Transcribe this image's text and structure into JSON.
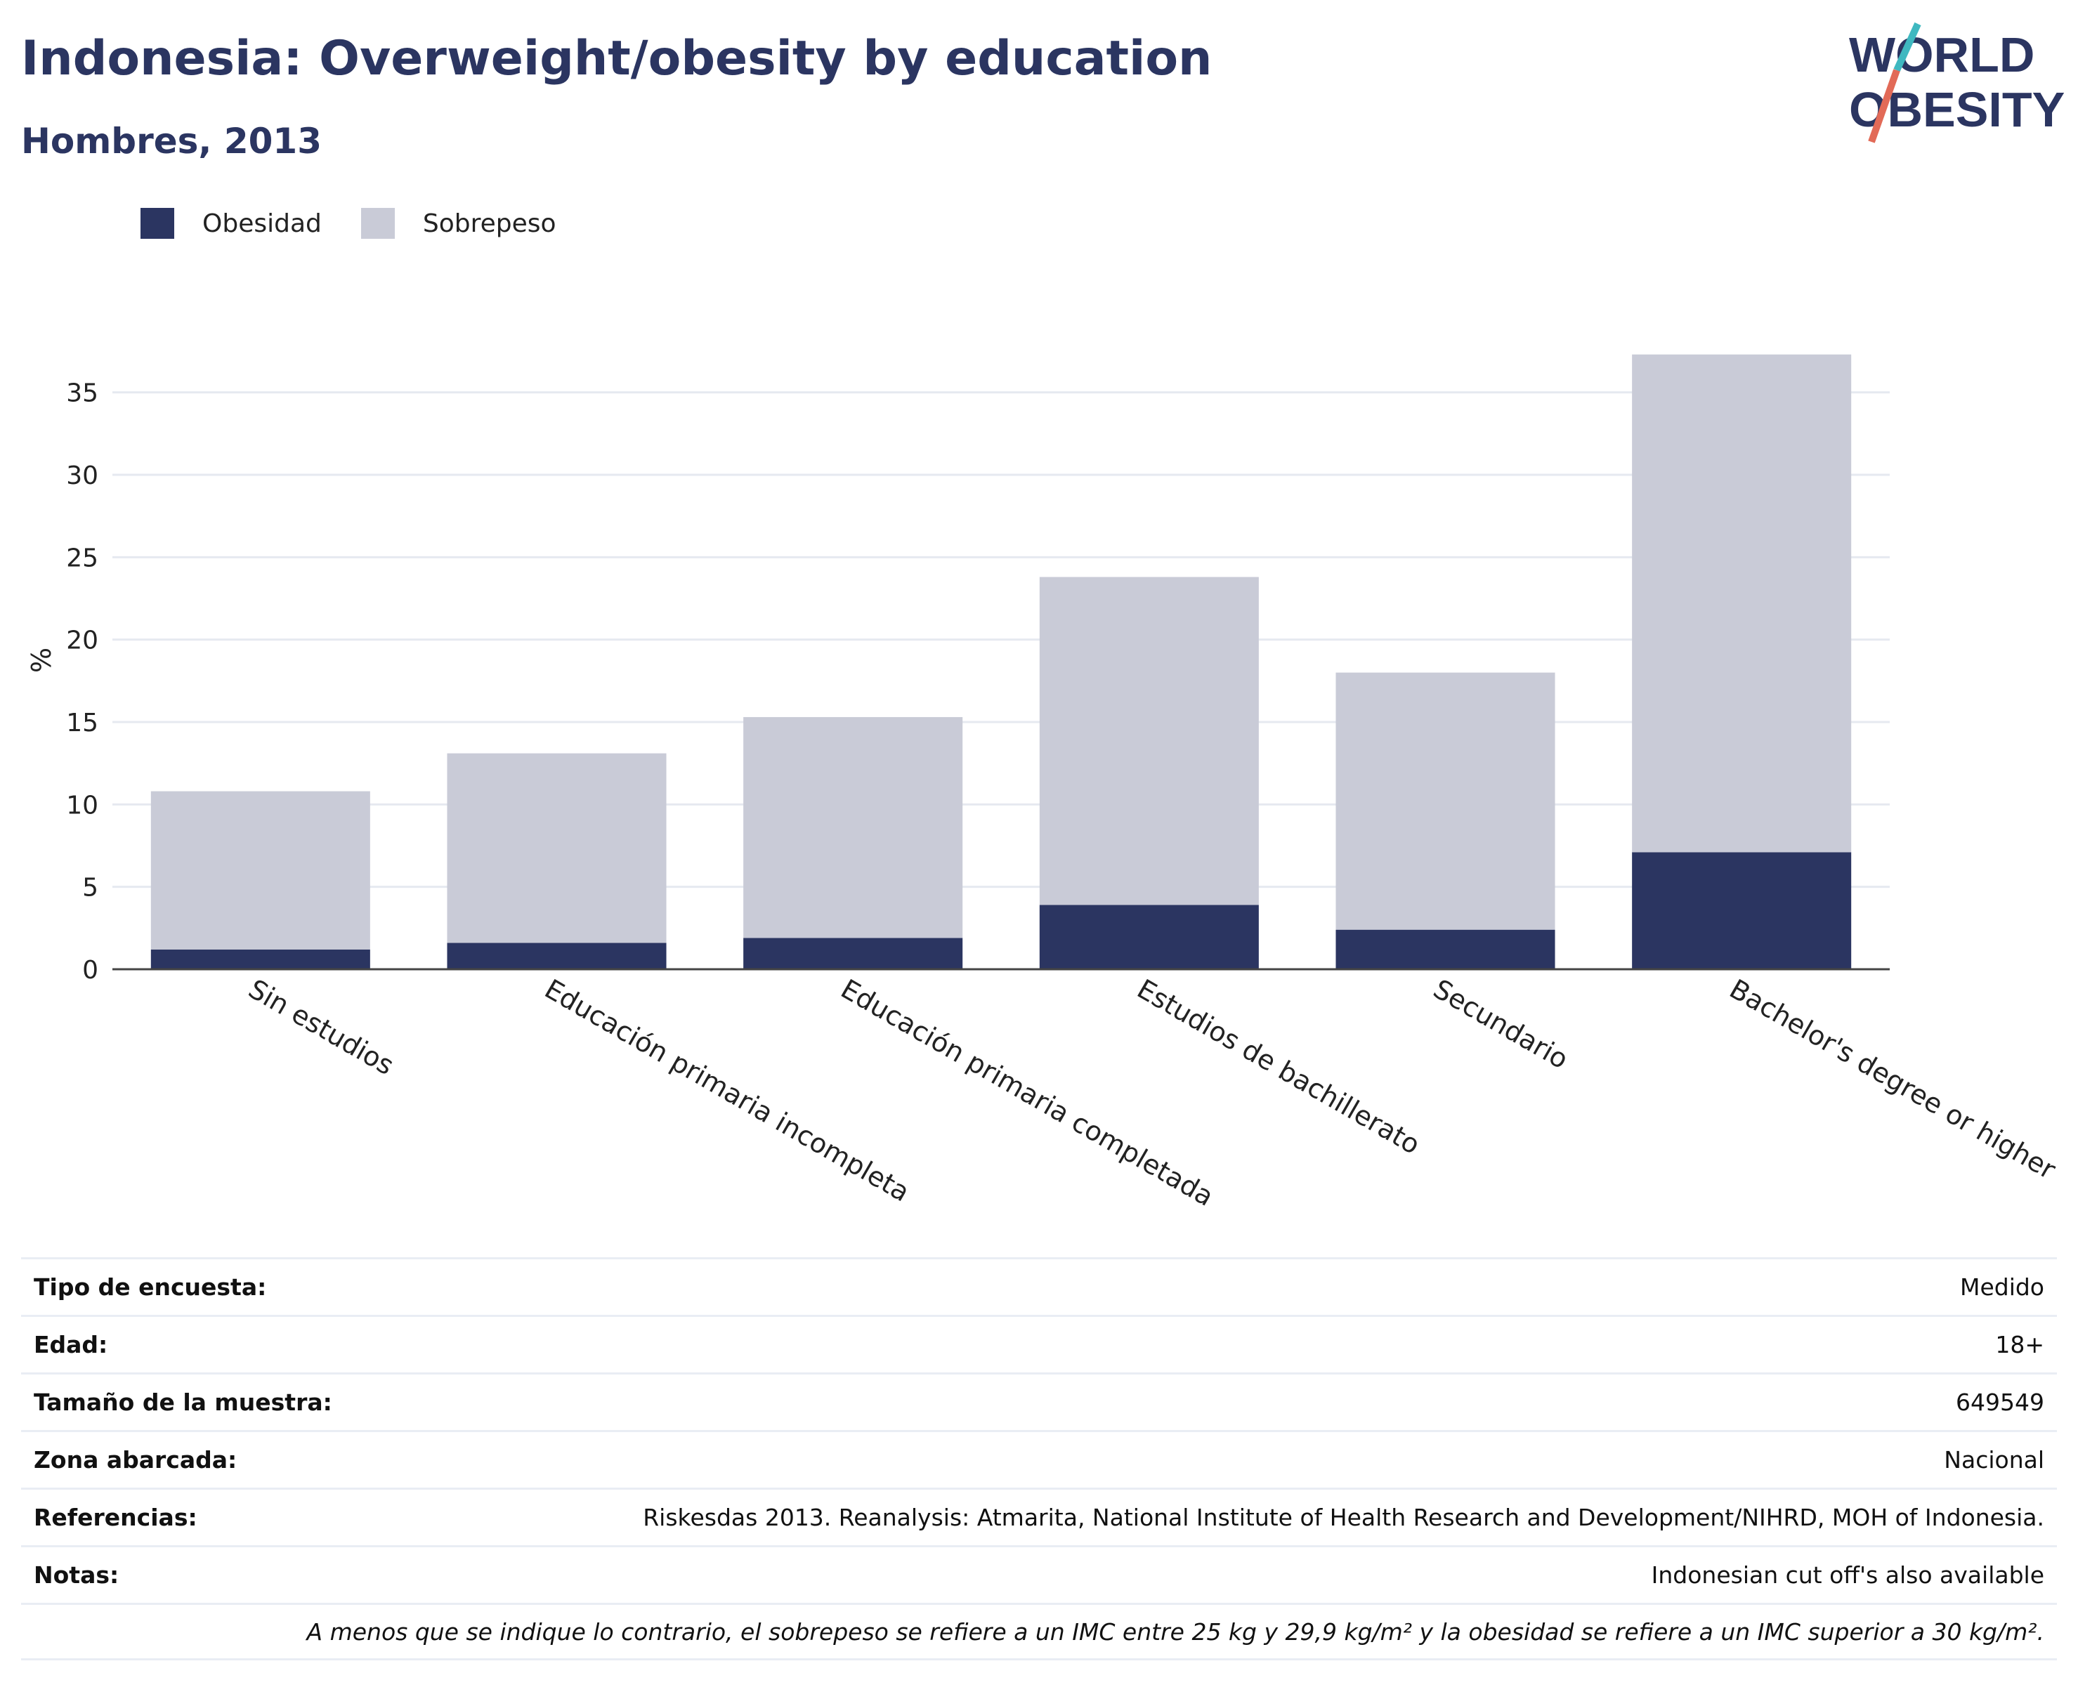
{
  "header": {
    "title": "Indonesia: Overweight/obesity by education",
    "subtitle": "Hombres, 2013",
    "logo_line1": "WORLD",
    "logo_line2": "OBESITY"
  },
  "colors": {
    "obesity": "#2b3561",
    "overweight": "#c9cbd7",
    "title": "#2b3561",
    "logo_teal": "#3fb8c0",
    "logo_coral": "#e26a57"
  },
  "chart_data": {
    "type": "bar",
    "stacked": true,
    "title": "",
    "xlabel": "",
    "ylabel": "%",
    "ylim": [
      0,
      37.5
    ],
    "yticks": [
      0,
      5,
      10,
      15,
      20,
      25,
      30,
      35
    ],
    "categories": [
      "Sin estudios",
      "Educación primaria incompleta",
      "Educación primaria completada",
      "Estudios de bachillerato",
      "Secundario",
      "Bachelor's degree or higher"
    ],
    "series": [
      {
        "name": "Obesidad",
        "values": [
          1.2,
          1.6,
          1.9,
          3.9,
          2.4,
          7.1
        ]
      },
      {
        "name": "Sobrepeso",
        "values": [
          9.6,
          11.5,
          13.4,
          19.9,
          15.6,
          30.2
        ]
      }
    ],
    "legend_position": "top-left",
    "grid": true
  },
  "info": {
    "rows": [
      {
        "key": "Tipo de encuesta:",
        "value": "Medido"
      },
      {
        "key": "Edad:",
        "value": "18+"
      },
      {
        "key": "Tamaño de la muestra:",
        "value": "649549"
      },
      {
        "key": "Zona abarcada:",
        "value": "Nacional"
      },
      {
        "key": "Referencias:",
        "value": "Riskesdas 2013. Reanalysis: Atmarita, National Institute of Health Research and Development/NIHRD, MOH of Indonesia."
      },
      {
        "key": "Notas:",
        "value": "Indonesian cut off's also available"
      }
    ],
    "footnote": "A menos que se indique lo contrario, el sobrepeso se refiere a un IMC entre 25 kg y 29,9 kg/m² y la obesidad se refiere a un IMC superior a 30 kg/m²."
  }
}
